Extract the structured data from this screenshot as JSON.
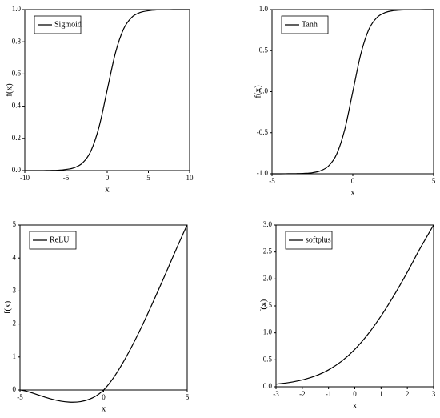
{
  "chart_data": [
    {
      "type": "line",
      "x_label": "x",
      "y_label": "f(x)",
      "legend": "upper left",
      "x": [
        -10,
        -9,
        -8,
        -7,
        -6,
        -5,
        -4,
        -3,
        -2,
        -1,
        0,
        1,
        2,
        3,
        4,
        5,
        6,
        7,
        8,
        9,
        10
      ],
      "series": [
        {
          "name": "Sigmoid",
          "color": "#000000",
          "values": [
            0.0,
            0.0,
            0.0,
            0.001,
            0.002,
            0.007,
            0.018,
            0.047,
            0.119,
            0.269,
            0.5,
            0.731,
            0.881,
            0.953,
            0.982,
            0.993,
            0.998,
            0.999,
            1.0,
            1.0,
            1.0
          ]
        }
      ],
      "xlim": [
        -10,
        10
      ],
      "xticks": [
        -10,
        -5,
        0,
        5,
        10
      ],
      "ylim": [
        0,
        1
      ],
      "yticks": [
        {
          "value": 0,
          "label": "0.0"
        },
        0.2,
        0.4,
        0.6,
        0.8,
        {
          "value": 1,
          "label": "1.0"
        }
      ]
    },
    {
      "type": "line",
      "x_label": "x",
      "y_label": "f(x)",
      "legend": "upper left",
      "x": [
        -5,
        -4.5,
        -4,
        -3.5,
        -3,
        -2.5,
        -2,
        -1.5,
        -1,
        -0.5,
        0,
        0.5,
        1,
        1.5,
        2,
        2.5,
        3,
        3.5,
        4,
        4.5,
        5
      ],
      "series": [
        {
          "name": "Tanh",
          "color": "#000000",
          "values": [
            -1.0,
            -1.0,
            -0.999,
            -0.998,
            -0.995,
            -0.987,
            -0.964,
            -0.905,
            -0.762,
            -0.462,
            0,
            0.462,
            0.762,
            0.905,
            0.964,
            0.987,
            0.995,
            0.998,
            0.999,
            1.0,
            1.0
          ]
        }
      ],
      "xlim": [
        -5,
        5
      ],
      "xticks": [
        -5,
        0,
        5
      ],
      "ylim": [
        -1,
        1
      ],
      "yticks": [
        {
          "value": -1,
          "label": "-1.0"
        },
        -0.5,
        {
          "value": 0,
          "label": "0.0"
        },
        0.5,
        {
          "value": 1,
          "label": "1.0"
        }
      ]
    },
    {
      "type": "line",
      "x_label": "x",
      "y_label": "f(x)",
      "legend": "upper left",
      "x": [
        -5,
        0,
        5
      ],
      "series": [
        {
          "name": "ReLU",
          "color": "#000000",
          "values": [
            0,
            0,
            5
          ]
        }
      ],
      "xlim": [
        -5,
        5
      ],
      "xticks": [
        -5,
        0,
        5
      ],
      "ylim": [
        0,
        5
      ],
      "yticks": [
        0,
        1,
        2,
        3,
        4,
        5
      ]
    },
    {
      "type": "line",
      "x_label": "x",
      "y_label": "f(x)",
      "legend": "upper left",
      "x": [
        -3,
        -2.5,
        -2,
        -1.5,
        -1,
        -0.5,
        0,
        0.5,
        1,
        1.5,
        2,
        2.5,
        3
      ],
      "series": [
        {
          "name": "softplus",
          "color": "#000000",
          "values": [
            0.049,
            0.079,
            0.127,
            0.201,
            0.313,
            0.474,
            0.693,
            0.974,
            1.313,
            1.701,
            2.127,
            2.579,
            3.0
          ]
        }
      ],
      "xlim": [
        -3,
        3
      ],
      "xticks": [
        -3,
        -2,
        -1,
        0,
        1,
        2,
        3
      ],
      "ylim": [
        0,
        3
      ],
      "yticks": [
        {
          "value": 0,
          "label": "0.0"
        },
        0.5,
        {
          "value": 1,
          "label": "1.0"
        },
        1.5,
        {
          "value": 2,
          "label": "2.0"
        },
        2.5,
        {
          "value": 3,
          "label": "3.0"
        }
      ]
    }
  ]
}
